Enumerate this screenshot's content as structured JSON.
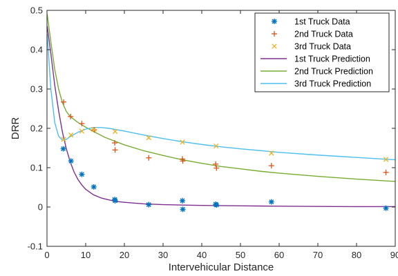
{
  "chart_data": {
    "type": "scatter",
    "xlabel": "Intervehicular Distance",
    "ylabel": "DRR",
    "xlim": [
      0,
      90
    ],
    "ylim": [
      -0.1,
      0.5
    ],
    "xticks": [
      "0",
      "10",
      "20",
      "30",
      "40",
      "50",
      "60",
      "70",
      "80",
      "90"
    ],
    "yticks": [
      "-0.1",
      "0",
      "0.1",
      "0.2",
      "0.3",
      "0.4",
      "0.5"
    ],
    "xtick_values": [
      0,
      10,
      20,
      30,
      40,
      50,
      60,
      70,
      80,
      90
    ],
    "ytick_values": [
      -0.1,
      0,
      0.1,
      0.2,
      0.3,
      0.4,
      0.5
    ],
    "grid": false,
    "legend_position": "top-right",
    "series": [
      {
        "name": "1st Truck Data",
        "kind": "scatter",
        "marker": "asterisk",
        "color": "#0072BD",
        "points": [
          [
            4.2,
            0.148
          ],
          [
            6.2,
            0.117
          ],
          [
            9.0,
            0.083
          ],
          [
            12.1,
            0.051
          ],
          [
            17.5,
            0.019
          ],
          [
            17.6,
            0.016
          ],
          [
            26.3,
            0.006
          ],
          [
            35.0,
            0.016
          ],
          [
            35.1,
            -0.006
          ],
          [
            43.6,
            0.007
          ],
          [
            43.8,
            0.005
          ],
          [
            58.0,
            0.013
          ],
          [
            87.6,
            -0.003
          ]
        ]
      },
      {
        "name": "2nd Truck Data",
        "kind": "scatter",
        "marker": "plus",
        "color": "#D95319",
        "points": [
          [
            4.3,
            0.267
          ],
          [
            6.1,
            0.23
          ],
          [
            9.0,
            0.212
          ],
          [
            12.2,
            0.196
          ],
          [
            17.5,
            0.163
          ],
          [
            17.6,
            0.145
          ],
          [
            26.3,
            0.125
          ],
          [
            35.0,
            0.122
          ],
          [
            35.1,
            0.117
          ],
          [
            43.6,
            0.109
          ],
          [
            43.8,
            0.099
          ],
          [
            58.0,
            0.105
          ],
          [
            87.6,
            0.088
          ]
        ]
      },
      {
        "name": "3rd Truck Data",
        "kind": "scatter",
        "marker": "cross",
        "color": "#EDB120",
        "points": [
          [
            4.3,
            0.172
          ],
          [
            6.2,
            0.183
          ],
          [
            9.0,
            0.193
          ],
          [
            12.1,
            0.197
          ],
          [
            17.6,
            0.192
          ],
          [
            26.3,
            0.176
          ],
          [
            35.0,
            0.165
          ],
          [
            43.7,
            0.155
          ],
          [
            58.0,
            0.137
          ],
          [
            87.6,
            0.121
          ]
        ]
      },
      {
        "name": "1st Truck Prediction",
        "kind": "line",
        "color": "#7E2F8E",
        "points": [
          [
            0.05,
            0.46
          ],
          [
            1,
            0.39
          ],
          [
            2,
            0.31
          ],
          [
            3,
            0.245
          ],
          [
            4,
            0.19
          ],
          [
            5,
            0.148
          ],
          [
            6,
            0.115
          ],
          [
            7,
            0.089
          ],
          [
            8,
            0.07
          ],
          [
            9,
            0.056
          ],
          [
            10,
            0.045
          ],
          [
            12,
            0.031
          ],
          [
            14,
            0.023
          ],
          [
            16,
            0.018
          ],
          [
            18,
            0.014
          ],
          [
            20,
            0.012
          ],
          [
            25,
            0.008
          ],
          [
            30,
            0.006
          ],
          [
            35,
            0.005
          ],
          [
            40,
            0.004
          ],
          [
            50,
            0.003
          ],
          [
            60,
            0.002
          ],
          [
            70,
            0.0015
          ],
          [
            80,
            0.001
          ],
          [
            90,
            0.001
          ]
        ]
      },
      {
        "name": "2nd Truck Prediction",
        "kind": "line",
        "color": "#77AC30",
        "points": [
          [
            0.05,
            0.49
          ],
          [
            1,
            0.42
          ],
          [
            2,
            0.35
          ],
          [
            3,
            0.3
          ],
          [
            4,
            0.265
          ],
          [
            5,
            0.243
          ],
          [
            6,
            0.23
          ],
          [
            8,
            0.215
          ],
          [
            10,
            0.203
          ],
          [
            12,
            0.192
          ],
          [
            15,
            0.177
          ],
          [
            20,
            0.158
          ],
          [
            25,
            0.143
          ],
          [
            30,
            0.131
          ],
          [
            35,
            0.12
          ],
          [
            40,
            0.111
          ],
          [
            45,
            0.103
          ],
          [
            50,
            0.097
          ],
          [
            55,
            0.091
          ],
          [
            60,
            0.086
          ],
          [
            70,
            0.078
          ],
          [
            80,
            0.071
          ],
          [
            90,
            0.065
          ]
        ]
      },
      {
        "name": "3rd Truck Prediction",
        "kind": "line",
        "color": "#4DBEEE",
        "points": [
          [
            0.05,
            0.44
          ],
          [
            1,
            0.3
          ],
          [
            2,
            0.215
          ],
          [
            3,
            0.18
          ],
          [
            4,
            0.17
          ],
          [
            5,
            0.172
          ],
          [
            6,
            0.179
          ],
          [
            8,
            0.19
          ],
          [
            10,
            0.198
          ],
          [
            12,
            0.202
          ],
          [
            14,
            0.202
          ],
          [
            16,
            0.2
          ],
          [
            20,
            0.193
          ],
          [
            25,
            0.183
          ],
          [
            30,
            0.174
          ],
          [
            35,
            0.166
          ],
          [
            40,
            0.159
          ],
          [
            45,
            0.153
          ],
          [
            50,
            0.148
          ],
          [
            60,
            0.139
          ],
          [
            70,
            0.132
          ],
          [
            80,
            0.126
          ],
          [
            90,
            0.12
          ]
        ]
      }
    ]
  }
}
